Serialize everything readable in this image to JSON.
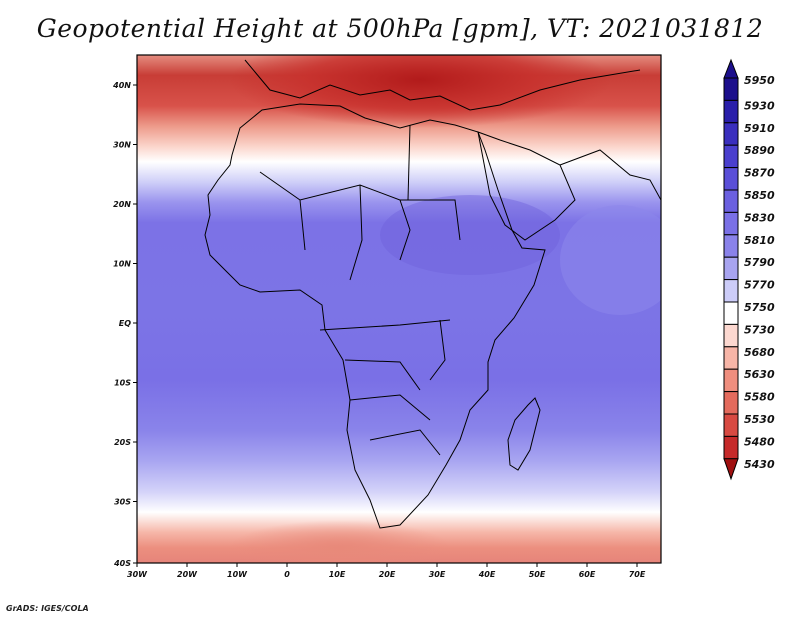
{
  "title": "Geopotential Height at 500hPa [gpm], VT: 2021031812",
  "credit": "GrADS: IGES/COLA",
  "map": {
    "lon_labels": [
      "30W",
      "20W",
      "10W",
      "0",
      "10E",
      "20E",
      "30E",
      "40E",
      "50E",
      "60E",
      "70E"
    ],
    "lat_labels": [
      "40N",
      "30N",
      "20N",
      "10N",
      "EQ",
      "10S",
      "20S",
      "30S",
      "40S"
    ]
  },
  "colorbar": {
    "levels": [
      "5950",
      "5930",
      "5910",
      "5890",
      "5870",
      "5850",
      "5830",
      "5810",
      "5790",
      "5770",
      "5750",
      "5730",
      "5680",
      "5630",
      "5580",
      "5530",
      "5480",
      "5430"
    ],
    "colors": [
      "#1c0f8c",
      "#2a1faa",
      "#3a2fbe",
      "#4a3fce",
      "#5a4fd8",
      "#6b60e0",
      "#7a70e6",
      "#8a82ea",
      "#a8a4f0",
      "#ccccf8",
      "#ffffff",
      "#fcd8d0",
      "#f7b5a7",
      "#ef8e7e",
      "#e46b5d",
      "#d84a42",
      "#c62a2a",
      "#a01010"
    ]
  },
  "colors": {
    "field_north": "#c62a2a",
    "field_main": "#7a70e6",
    "border": "#000000"
  }
}
